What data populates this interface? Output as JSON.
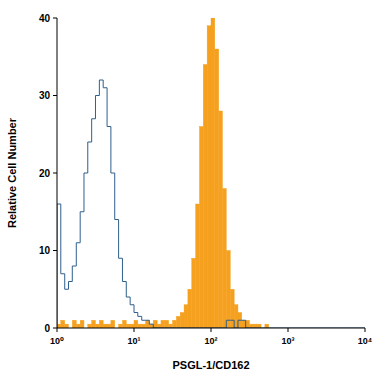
{
  "chart_data": {
    "type": "histogram",
    "x_label": "PSGL-1/CD162",
    "y_label": "Relative Cell Number",
    "log": "x",
    "xlim": [
      1,
      10000
    ],
    "ylim": [
      0,
      40
    ],
    "xticks": [
      {
        "value": 1,
        "label": "10⁰"
      },
      {
        "value": 10,
        "label": "10¹"
      },
      {
        "value": 100,
        "label": "10²"
      },
      {
        "value": 1000,
        "label": "10³"
      },
      {
        "value": 10000,
        "label": "10⁴"
      }
    ],
    "yticks": [
      0,
      10,
      20,
      30,
      40
    ],
    "bins": [
      1,
      1.12,
      1.26,
      1.41,
      1.58,
      1.78,
      2,
      2.24,
      2.51,
      2.82,
      3.16,
      3.55,
      3.98,
      4.47,
      5.01,
      5.62,
      6.31,
      7.08,
      7.94,
      8.91,
      10,
      11.2,
      12.6,
      14.1,
      15.8,
      17.8,
      20,
      22.4,
      25.1,
      28.2,
      31.6,
      35.5,
      39.8,
      44.7,
      50.1,
      56.2,
      63.1,
      70.8,
      79.4,
      89.1,
      100,
      112,
      126,
      141,
      158,
      178,
      200,
      224,
      251,
      282,
      316,
      355,
      398,
      447,
      501,
      562,
      631,
      708,
      794,
      891,
      1000,
      1120,
      1260,
      1410,
      1580,
      1780,
      2000,
      2240,
      2510,
      2820,
      3160,
      3550,
      3980,
      4470,
      5010,
      5620,
      6310,
      7080,
      7940,
      8910,
      10000
    ],
    "series": [
      {
        "type": "bar",
        "color": "#f5a01e",
        "values": [
          0.5,
          1,
          0.5,
          0,
          1,
          0.5,
          1,
          0,
          0.5,
          1,
          0.5,
          1,
          0.5,
          0.5,
          1,
          0,
          0.5,
          1,
          0.5,
          0.5,
          1,
          0.5,
          0.5,
          1,
          0.5,
          1,
          0.5,
          1,
          1,
          0.5,
          1,
          1.5,
          2,
          3,
          5,
          9,
          16,
          26,
          34,
          39,
          40,
          36,
          28,
          18,
          10,
          5,
          3,
          2,
          1,
          1,
          0.5,
          0.5,
          0.5,
          0,
          0.5,
          0,
          0,
          0,
          0,
          0,
          0,
          0,
          0,
          0,
          0,
          0,
          0,
          0,
          0,
          0,
          0,
          0,
          0,
          0,
          0,
          0,
          0,
          0,
          0,
          0
        ]
      },
      {
        "type": "step",
        "color": "#2f5f8c",
        "values": [
          16,
          7,
          5,
          6,
          8,
          11,
          15,
          20,
          24,
          27,
          30,
          32,
          31,
          26,
          20,
          14,
          9,
          6,
          4,
          3,
          2,
          1.5,
          1,
          1,
          0.5,
          0,
          0,
          0,
          0,
          0,
          0,
          0,
          0,
          0,
          0,
          0,
          0,
          0,
          0,
          0,
          0,
          0,
          0,
          0,
          1,
          1,
          0,
          1,
          1,
          0,
          0,
          0,
          0,
          0,
          0,
          0,
          0,
          0,
          0,
          0,
          0,
          0,
          0,
          0,
          0,
          0,
          0,
          0,
          0,
          0,
          0,
          0,
          0,
          0,
          0,
          0,
          0,
          0,
          0,
          0
        ]
      }
    ]
  }
}
